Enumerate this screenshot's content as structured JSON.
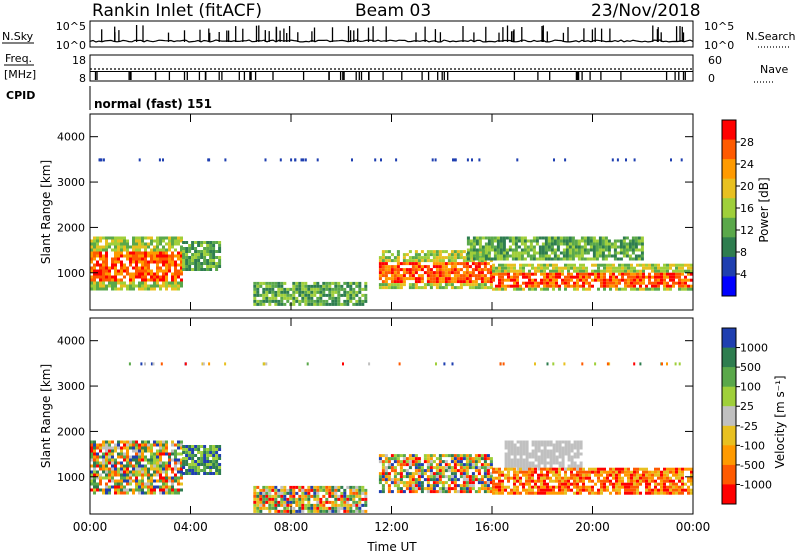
{
  "header": {
    "station": "Rankin Inlet (fitACF)",
    "beam": "Beam 03",
    "date": "23/Nov/2018"
  },
  "colors": {
    "power_scale": [
      "#0000ff",
      "#1f3fb0",
      "#2e7d4f",
      "#5aa84a",
      "#9fcf3a",
      "#e8c020",
      "#ff9a00",
      "#ff5a00",
      "#ff0000"
    ],
    "velocity_scale": [
      "#ff0000",
      "#ff5a00",
      "#ff9a00",
      "#e8c020",
      "#c0c0c0",
      "#9fcf3a",
      "#5aa84a",
      "#2e7d4f",
      "#1f3fb0"
    ]
  },
  "chart_data": [
    {
      "type": "line",
      "name": "N.Sky / N.Search",
      "left_label": "N.Sky",
      "right_label": "N.Search",
      "left_ticks": [
        "10^5",
        "10^0"
      ],
      "right_ticks": [
        "10^5",
        "10^0"
      ]
    },
    {
      "type": "line",
      "name": "Freq / Nave",
      "left_label_line1": "Freq.",
      "left_label_line2": "[MHz]",
      "right_label": "Nave",
      "left_ticks": [
        "18",
        "8"
      ],
      "right_ticks": [
        "60",
        "0"
      ]
    },
    {
      "type": "table",
      "name": "CPID",
      "label": "CPID",
      "value": "normal (fast) 151"
    },
    {
      "type": "heatmap",
      "quantity": "Power",
      "ylabel": "Slant Range [km]",
      "yticks": [
        "4000",
        "3000",
        "2000",
        "1000"
      ],
      "ylim": [
        180,
        4500
      ],
      "colorbar_label": "Power [dB]",
      "colorbar_ticks": [
        "28",
        "24",
        "20",
        "16",
        "12",
        "8",
        "4"
      ],
      "bands": [
        {
          "start": "00:00",
          "end": "03:40",
          "range_low": 650,
          "range_high": 1800,
          "level": "high"
        },
        {
          "start": "03:40",
          "end": "05:10",
          "range_low": 1100,
          "range_high": 1700,
          "level": "medium"
        },
        {
          "start": "06:30",
          "end": "11:00",
          "range_low": 300,
          "range_high": 800,
          "level": "medium"
        },
        {
          "start": "11:30",
          "end": "16:00",
          "range_low": 700,
          "range_high": 1500,
          "level": "high"
        },
        {
          "start": "16:00",
          "end": "24:00",
          "range_low": 650,
          "range_high": 1200,
          "level": "high"
        },
        {
          "start": "15:00",
          "end": "22:00",
          "range_low": 1300,
          "range_high": 1800,
          "level": "medium"
        }
      ]
    },
    {
      "type": "heatmap",
      "quantity": "Velocity",
      "ylabel": "Slant Range [km]",
      "yticks": [
        "4000",
        "3000",
        "2000",
        "1000"
      ],
      "ylim": [
        180,
        4500
      ],
      "colorbar_label": "Velocity [m s⁻¹]",
      "colorbar_ticks": [
        "1000",
        "500",
        "100",
        "25",
        "-25",
        "-100",
        "-500",
        "-1000"
      ],
      "xlabel": "Time UT",
      "xticks": [
        "00:00",
        "04:00",
        "08:00",
        "12:00",
        "16:00",
        "20:00",
        "00:00"
      ],
      "bands": [
        {
          "start": "00:00",
          "end": "03:40",
          "range_low": 650,
          "range_high": 1800,
          "velocity": "mixed"
        },
        {
          "start": "03:40",
          "end": "05:10",
          "range_low": 1100,
          "range_high": 1700,
          "velocity": "positive"
        },
        {
          "start": "06:30",
          "end": "11:00",
          "range_low": 250,
          "range_high": 800,
          "velocity": "mixed"
        },
        {
          "start": "11:30",
          "end": "16:00",
          "range_low": 700,
          "range_high": 1500,
          "velocity": "mixed"
        },
        {
          "start": "16:30",
          "end": "19:30",
          "range_low": 1200,
          "range_high": 1800,
          "velocity": "ground"
        },
        {
          "start": "16:00",
          "end": "24:00",
          "range_low": 650,
          "range_high": 1200,
          "velocity": "negative"
        }
      ]
    }
  ]
}
